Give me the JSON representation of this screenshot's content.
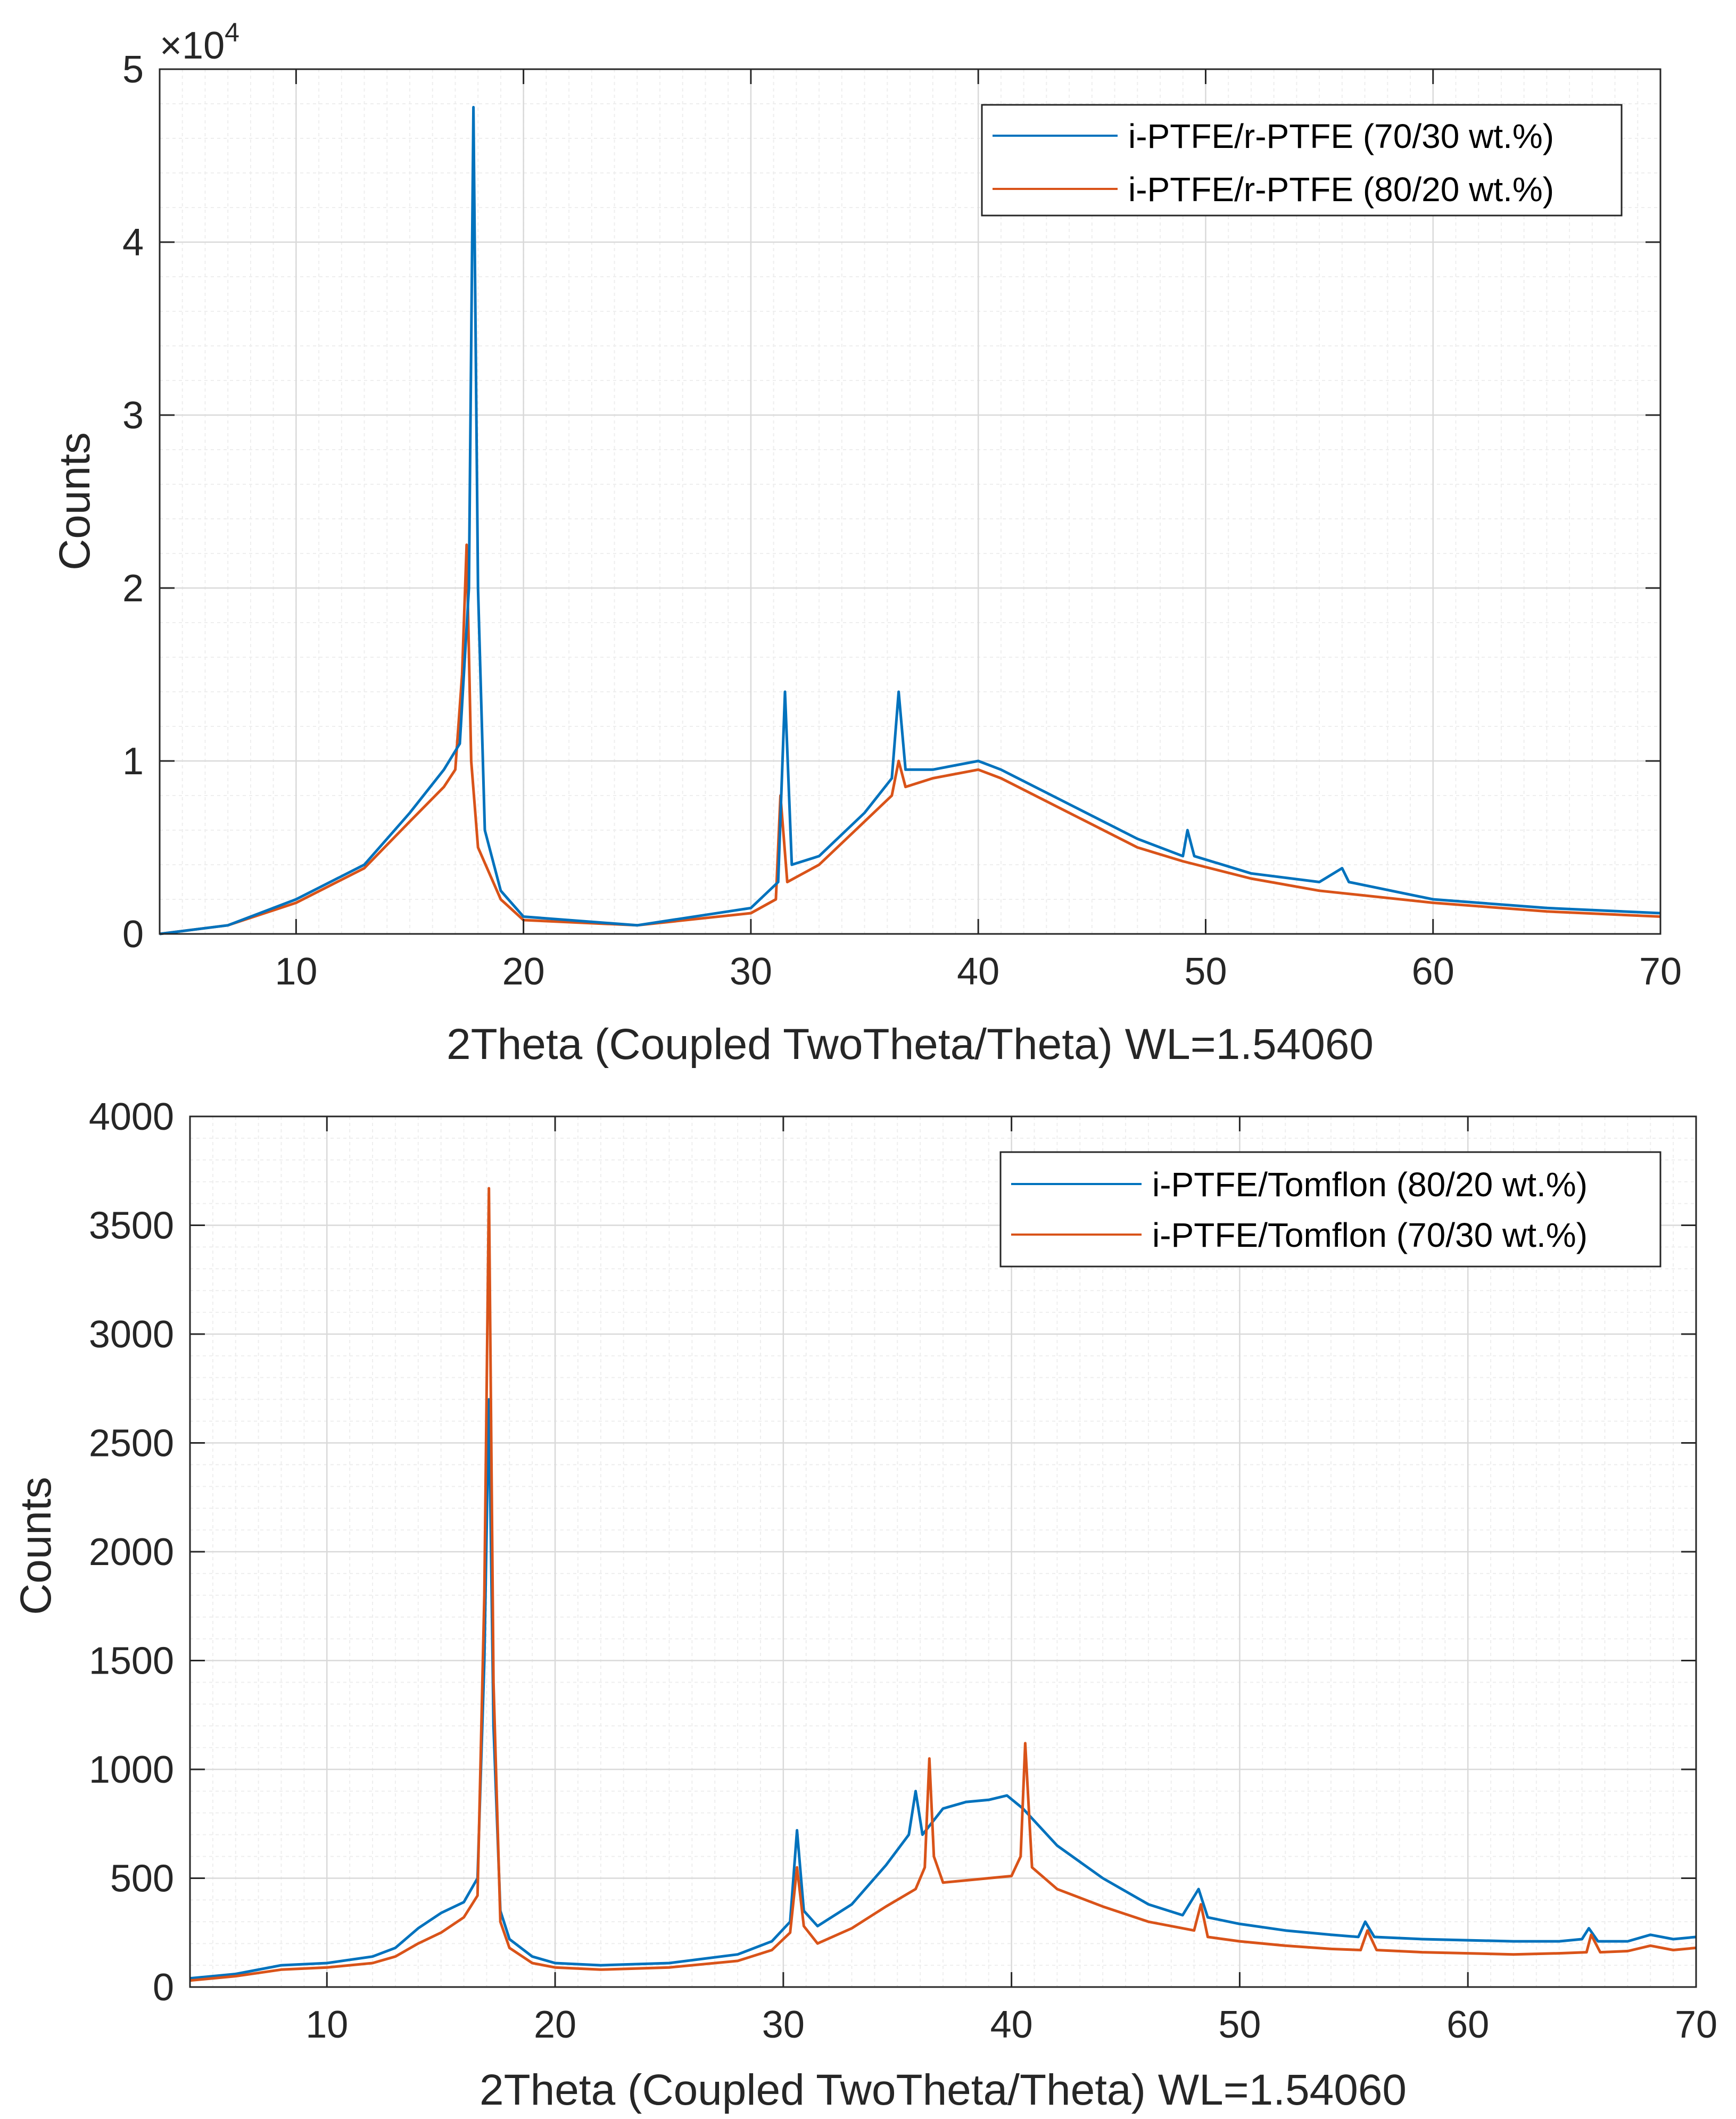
{
  "colors": {
    "series1": "#0072BD",
    "series2": "#D95319",
    "grid_major": "#d9d9d9",
    "grid_minor": "#eeeeee",
    "axis": "#262626"
  },
  "chart_data": [
    {
      "type": "line",
      "xlabel": "2Theta (Coupled TwoTheta/Theta) WL=1.54060",
      "ylabel": "Counts",
      "xlim": [
        4,
        70
      ],
      "ylim": [
        0,
        5
      ],
      "y_multiplier_label": "×10",
      "y_multiplier_exp": "4",
      "xticks": [
        "10",
        "20",
        "30",
        "40",
        "50",
        "60",
        "70"
      ],
      "yticks": [
        "0",
        "1",
        "2",
        "3",
        "4",
        "5"
      ],
      "grid": true,
      "legend_position": "top-right",
      "series": [
        {
          "name": "i-PTFE/r-PTFE (70/30 wt.%)",
          "points": [
            [
              4,
              0.0
            ],
            [
              7,
              0.05
            ],
            [
              10,
              0.2
            ],
            [
              13,
              0.4
            ],
            [
              15,
              0.7
            ],
            [
              16.5,
              0.95
            ],
            [
              17.2,
              1.1
            ],
            [
              17.6,
              2.0
            ],
            [
              17.8,
              4.78
            ],
            [
              18.0,
              2.0
            ],
            [
              18.3,
              0.6
            ],
            [
              19,
              0.25
            ],
            [
              20,
              0.1
            ],
            [
              25,
              0.05
            ],
            [
              30,
              0.15
            ],
            [
              31.2,
              0.3
            ],
            [
              31.5,
              1.4
            ],
            [
              31.8,
              0.4
            ],
            [
              33,
              0.45
            ],
            [
              35,
              0.7
            ],
            [
              36.2,
              0.9
            ],
            [
              36.5,
              1.4
            ],
            [
              36.8,
              0.95
            ],
            [
              38,
              0.95
            ],
            [
              40,
              1.0
            ],
            [
              41,
              0.95
            ],
            [
              44,
              0.75
            ],
            [
              47,
              0.55
            ],
            [
              49,
              0.45
            ],
            [
              49.2,
              0.6
            ],
            [
              49.5,
              0.45
            ],
            [
              52,
              0.35
            ],
            [
              55,
              0.3
            ],
            [
              56,
              0.38
            ],
            [
              56.3,
              0.3
            ],
            [
              60,
              0.2
            ],
            [
              65,
              0.15
            ],
            [
              70,
              0.12
            ]
          ]
        },
        {
          "name": "i-PTFE/r-PTFE (80/20 wt.%)",
          "points": [
            [
              4,
              0.0
            ],
            [
              7,
              0.05
            ],
            [
              10,
              0.18
            ],
            [
              13,
              0.38
            ],
            [
              15,
              0.65
            ],
            [
              16.5,
              0.85
            ],
            [
              17.0,
              0.95
            ],
            [
              17.3,
              1.5
            ],
            [
              17.5,
              2.25
            ],
            [
              17.7,
              1.0
            ],
            [
              18.0,
              0.5
            ],
            [
              19,
              0.2
            ],
            [
              20,
              0.08
            ],
            [
              25,
              0.05
            ],
            [
              30,
              0.12
            ],
            [
              31.1,
              0.2
            ],
            [
              31.3,
              0.8
            ],
            [
              31.6,
              0.3
            ],
            [
              33,
              0.4
            ],
            [
              35,
              0.65
            ],
            [
              36.2,
              0.8
            ],
            [
              36.5,
              1.0
            ],
            [
              36.8,
              0.85
            ],
            [
              38,
              0.9
            ],
            [
              40,
              0.95
            ],
            [
              41,
              0.9
            ],
            [
              44,
              0.7
            ],
            [
              47,
              0.5
            ],
            [
              49,
              0.42
            ],
            [
              52,
              0.32
            ],
            [
              55,
              0.25
            ],
            [
              60,
              0.18
            ],
            [
              65,
              0.13
            ],
            [
              70,
              0.1
            ]
          ]
        }
      ]
    },
    {
      "type": "line",
      "xlabel": "2Theta (Coupled TwoTheta/Theta) WL=1.54060",
      "ylabel": "Counts",
      "xlim": [
        4,
        70
      ],
      "ylim": [
        0,
        4000
      ],
      "xticks": [
        "10",
        "20",
        "30",
        "40",
        "50",
        "60",
        "70"
      ],
      "yticks": [
        "0",
        "500",
        "1000",
        "1500",
        "2000",
        "2500",
        "3000",
        "3500",
        "4000"
      ],
      "grid": true,
      "legend_position": "top-right",
      "series": [
        {
          "name": "i-PTFE/Tomflon (80/20 wt.%)",
          "points": [
            [
              4,
              40
            ],
            [
              6,
              60
            ],
            [
              8,
              100
            ],
            [
              10,
              110
            ],
            [
              12,
              140
            ],
            [
              13,
              180
            ],
            [
              14,
              270
            ],
            [
              15,
              340
            ],
            [
              16,
              390
            ],
            [
              16.6,
              500
            ],
            [
              16.9,
              1500
            ],
            [
              17.1,
              2700
            ],
            [
              17.3,
              1200
            ],
            [
              17.6,
              350
            ],
            [
              18,
              220
            ],
            [
              19,
              140
            ],
            [
              20,
              110
            ],
            [
              22,
              100
            ],
            [
              25,
              110
            ],
            [
              28,
              150
            ],
            [
              29.5,
              210
            ],
            [
              30.3,
              300
            ],
            [
              30.6,
              720
            ],
            [
              30.9,
              350
            ],
            [
              31.5,
              280
            ],
            [
              33,
              380
            ],
            [
              34.5,
              560
            ],
            [
              35.5,
              700
            ],
            [
              35.8,
              900
            ],
            [
              36.1,
              700
            ],
            [
              37,
              820
            ],
            [
              38,
              850
            ],
            [
              39,
              860
            ],
            [
              39.8,
              880
            ],
            [
              40.5,
              820
            ],
            [
              42,
              650
            ],
            [
              44,
              500
            ],
            [
              46,
              380
            ],
            [
              47.5,
              330
            ],
            [
              48.2,
              450
            ],
            [
              48.6,
              320
            ],
            [
              50,
              290
            ],
            [
              52,
              260
            ],
            [
              54,
              240
            ],
            [
              55.2,
              230
            ],
            [
              55.5,
              300
            ],
            [
              55.9,
              230
            ],
            [
              58,
              220
            ],
            [
              60,
              215
            ],
            [
              62,
              210
            ],
            [
              64,
              210
            ],
            [
              65,
              220
            ],
            [
              65.3,
              270
            ],
            [
              65.7,
              210
            ],
            [
              67,
              210
            ],
            [
              68,
              240
            ],
            [
              69,
              220
            ],
            [
              70,
              230
            ]
          ]
        },
        {
          "name": "i-PTFE/Tomflon (70/30 wt.%)",
          "points": [
            [
              4,
              30
            ],
            [
              6,
              50
            ],
            [
              8,
              80
            ],
            [
              10,
              90
            ],
            [
              12,
              110
            ],
            [
              13,
              140
            ],
            [
              14,
              200
            ],
            [
              15,
              250
            ],
            [
              16,
              320
            ],
            [
              16.6,
              420
            ],
            [
              16.9,
              1800
            ],
            [
              17.1,
              3670
            ],
            [
              17.3,
              1400
            ],
            [
              17.6,
              300
            ],
            [
              18,
              180
            ],
            [
              19,
              110
            ],
            [
              20,
              90
            ],
            [
              22,
              80
            ],
            [
              25,
              90
            ],
            [
              28,
              120
            ],
            [
              29.5,
              170
            ],
            [
              30.3,
              250
            ],
            [
              30.6,
              550
            ],
            [
              30.9,
              280
            ],
            [
              31.5,
              200
            ],
            [
              33,
              270
            ],
            [
              34.5,
              370
            ],
            [
              35.8,
              450
            ],
            [
              36.2,
              550
            ],
            [
              36.4,
              1050
            ],
            [
              36.6,
              600
            ],
            [
              37,
              480
            ],
            [
              38,
              490
            ],
            [
              39,
              500
            ],
            [
              40,
              510
            ],
            [
              40.4,
              600
            ],
            [
              40.6,
              1120
            ],
            [
              40.9,
              550
            ],
            [
              42,
              450
            ],
            [
              44,
              370
            ],
            [
              46,
              300
            ],
            [
              48,
              260
            ],
            [
              48.3,
              380
            ],
            [
              48.6,
              230
            ],
            [
              50,
              210
            ],
            [
              52,
              190
            ],
            [
              54,
              175
            ],
            [
              55.3,
              170
            ],
            [
              55.6,
              260
            ],
            [
              56,
              170
            ],
            [
              58,
              160
            ],
            [
              60,
              155
            ],
            [
              62,
              150
            ],
            [
              64,
              155
            ],
            [
              65.2,
              160
            ],
            [
              65.4,
              240
            ],
            [
              65.8,
              160
            ],
            [
              67,
              165
            ],
            [
              68,
              190
            ],
            [
              69,
              170
            ],
            [
              70,
              180
            ]
          ]
        }
      ]
    }
  ]
}
